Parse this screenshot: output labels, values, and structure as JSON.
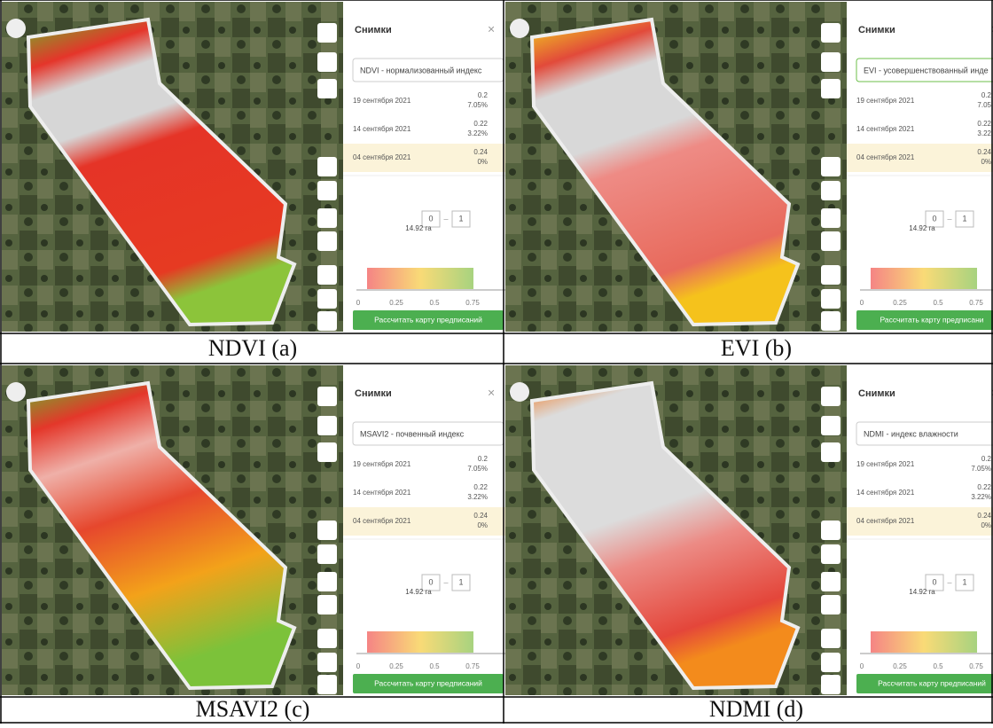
{
  "panels": [
    {
      "caption": "NDVI (a)",
      "sidebar": {
        "title": "Снимки",
        "index": "NDVI - нормализованный индекс",
        "rows": [
          {
            "date": "19 сентября 2021",
            "value": "0.2",
            "cloud": "7.05%"
          },
          {
            "date": "14 сентября 2021",
            "value": "0.22",
            "cloud": "3.22%"
          },
          {
            "date": "04 сентября 2021",
            "value": "0.24",
            "cloud": "0%"
          }
        ],
        "range": [
          "0",
          "1"
        ],
        "area": "14.92 га",
        "ticks": [
          "0",
          "0.25",
          "0.5",
          "0.75"
        ],
        "button": "Рассчитать карту предписаний"
      }
    },
    {
      "caption": "EVI (b)",
      "sidebar": {
        "title": "Снимки",
        "index": "EVI - усовершенствованный инде",
        "rows": [
          {
            "date": "19 сентября 2021",
            "value": "0.2",
            "cloud": "7.05"
          },
          {
            "date": "14 сентября 2021",
            "value": "0.22",
            "cloud": "3.22"
          },
          {
            "date": "04 сентября 2021",
            "value": "0.24",
            "cloud": "0%"
          }
        ],
        "range": [
          "0",
          "1"
        ],
        "area": "14.92 га",
        "ticks": [
          "0",
          "0.25",
          "0.5",
          "0.75"
        ],
        "button": "Рассчитать карту предписани"
      }
    },
    {
      "caption": "MSAVI2 (c)",
      "sidebar": {
        "title": "Снимки",
        "index": "MSAVI2 - почвенный индекс",
        "rows": [
          {
            "date": "19 сентября 2021",
            "value": "0.2",
            "cloud": "7.05%"
          },
          {
            "date": "14 сентября 2021",
            "value": "0.22",
            "cloud": "3.22%"
          },
          {
            "date": "04 сентября 2021",
            "value": "0.24",
            "cloud": "0%"
          }
        ],
        "range": [
          "0",
          "1"
        ],
        "area": "14.92 га",
        "ticks": [
          "0",
          "0.25",
          "0.5",
          "0.75"
        ],
        "button": "Рассчитать карту предписаний"
      }
    },
    {
      "caption": "NDMI (d)",
      "sidebar": {
        "title": "Снимки",
        "index": "NDMI - индекс влажности",
        "rows": [
          {
            "date": "19 сентября 2021",
            "value": "0.2",
            "cloud": "7.05%"
          },
          {
            "date": "14 сентября 2021",
            "value": "0.22",
            "cloud": "3.22%"
          },
          {
            "date": "04 сентября 2021",
            "value": "0.24",
            "cloud": "0%"
          }
        ],
        "range": [
          "0",
          "1"
        ],
        "area": "14.92 га",
        "ticks": [
          "0",
          "0.25",
          "0.5",
          "0.75"
        ],
        "button": "Рассчитать карту предписаний"
      }
    }
  ]
}
